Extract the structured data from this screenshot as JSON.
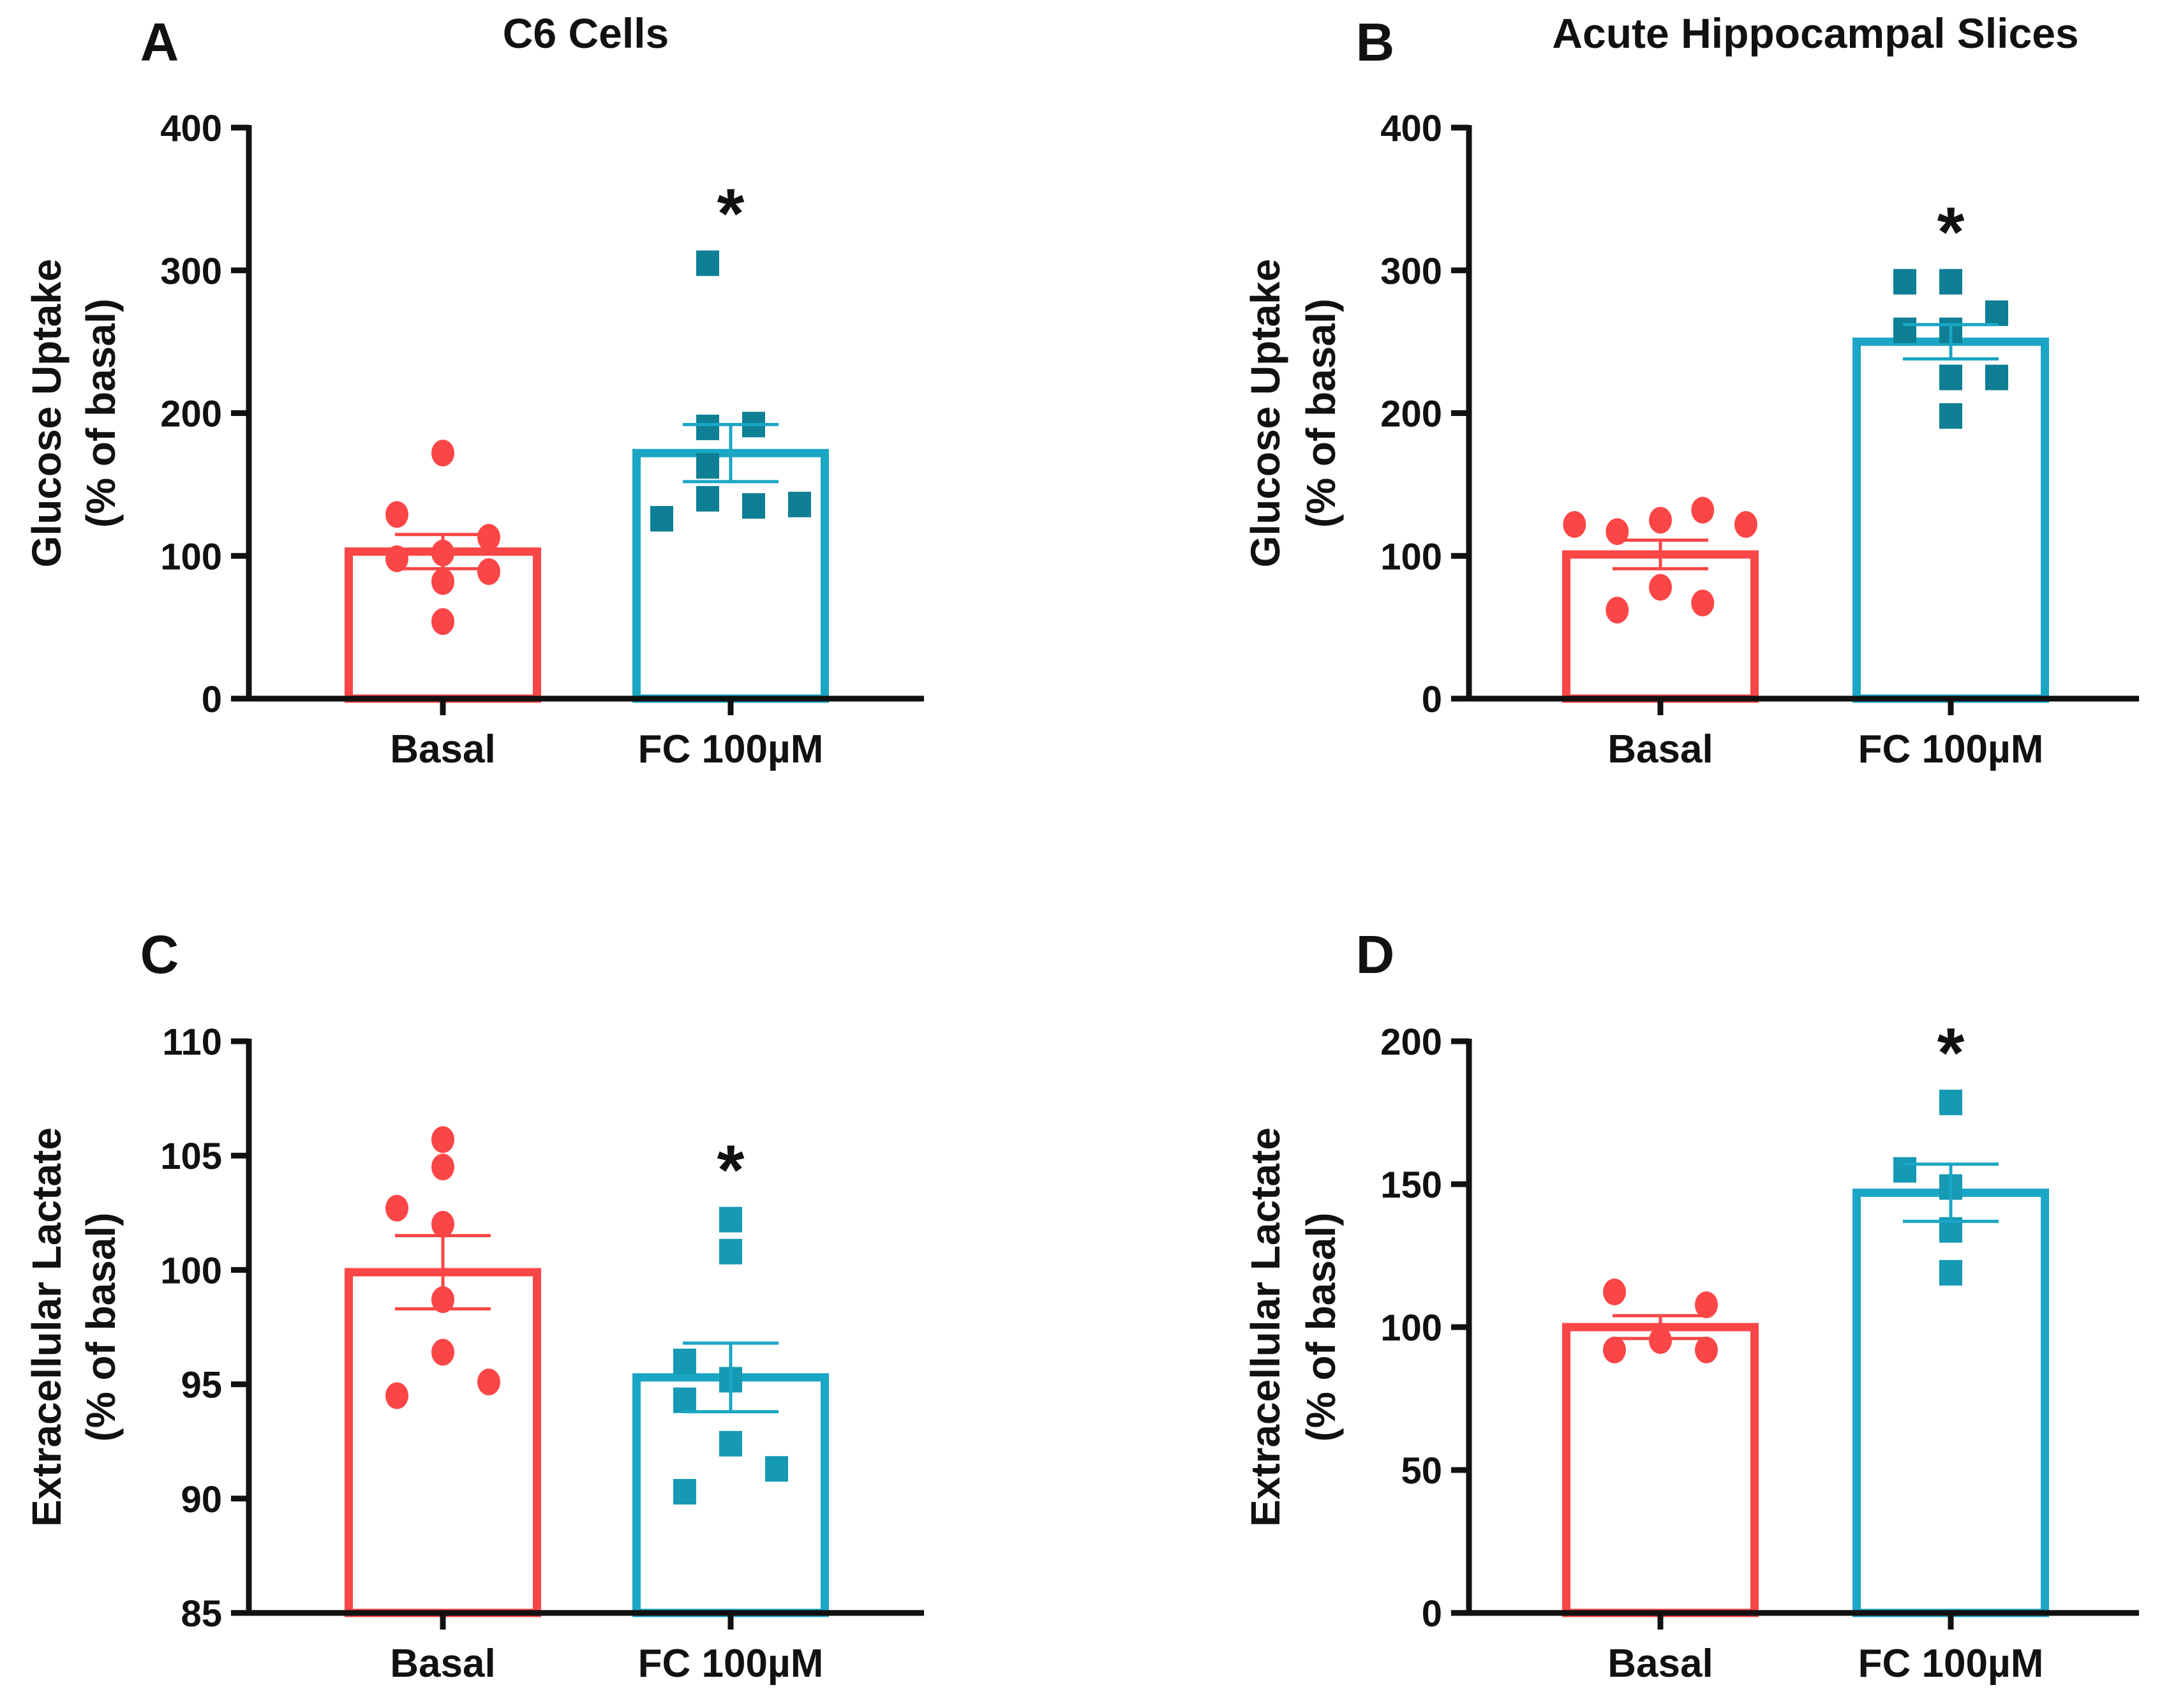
{
  "colors": {
    "basal": "#FA4646",
    "fc_bar": "#1AA6C4",
    "fc_point_top": "#0E7F95",
    "fc_point_bottom": "#1699B3",
    "axis": "#111111"
  },
  "chart_data": [
    {
      "panel": "A",
      "title": "C6 Cells",
      "type": "bar",
      "ylabel": [
        "Glucose Uptake",
        "(% of basal)"
      ],
      "ylim": [
        0,
        400
      ],
      "yticks": [
        0,
        100,
        200,
        300,
        400
      ],
      "categories": [
        "Basal",
        "FC 100µM"
      ],
      "means": [
        103,
        172
      ],
      "sem": [
        12,
        20
      ],
      "points": [
        [
          172,
          129,
          113,
          102,
          98,
          89,
          82,
          54
        ],
        [
          305,
          190,
          192,
          163,
          140,
          135,
          136,
          126
        ]
      ],
      "significance": [
        "",
        "*"
      ]
    },
    {
      "panel": "B",
      "title": "Acute Hippocampal Slices",
      "type": "bar",
      "ylabel": [
        "Glucose Uptake",
        "(% of basal)"
      ],
      "ylim": [
        0,
        400
      ],
      "yticks": [
        0,
        100,
        200,
        300,
        400
      ],
      "categories": [
        "Basal",
        "FC 100µM"
      ],
      "means": [
        101,
        250
      ],
      "sem": [
        10,
        12
      ],
      "points": [
        [
          122,
          117,
          125,
          132,
          122,
          62,
          78,
          67
        ],
        [
          292,
          292,
          270,
          258,
          258,
          225,
          225,
          198
        ]
      ],
      "significance": [
        "",
        "*"
      ]
    },
    {
      "panel": "C",
      "title": "",
      "type": "bar",
      "ylabel": [
        "Extracellular Lactate",
        "(% of basal)"
      ],
      "ylim": [
        85,
        110
      ],
      "yticks": [
        85,
        90,
        95,
        100,
        105,
        110
      ],
      "categories": [
        "Basal",
        "FC 100µM"
      ],
      "means": [
        99.9,
        95.3
      ],
      "sem": [
        1.6,
        1.5
      ],
      "points": [
        [
          105.7,
          104.5,
          102.7,
          102.0,
          98.7,
          96.4,
          95.1,
          94.5
        ],
        [
          102.2,
          100.8,
          96.0,
          95.2,
          94.3,
          92.4,
          91.3,
          90.3
        ]
      ],
      "significance": [
        "",
        "*"
      ]
    },
    {
      "panel": "D",
      "title": "",
      "type": "bar",
      "ylabel": [
        "Extracellular Lactate",
        "(% of basal)"
      ],
      "ylim": [
        0,
        200
      ],
      "yticks": [
        0,
        50,
        100,
        150,
        200
      ],
      "categories": [
        "Basal",
        "FC 100µM"
      ],
      "means": [
        100,
        147
      ],
      "sem": [
        4,
        10
      ],
      "points": [
        [
          112.3,
          107.8,
          95.3,
          92,
          92
        ],
        [
          178.6,
          155,
          149,
          134,
          119
        ]
      ],
      "significance": [
        "",
        "*"
      ]
    }
  ]
}
